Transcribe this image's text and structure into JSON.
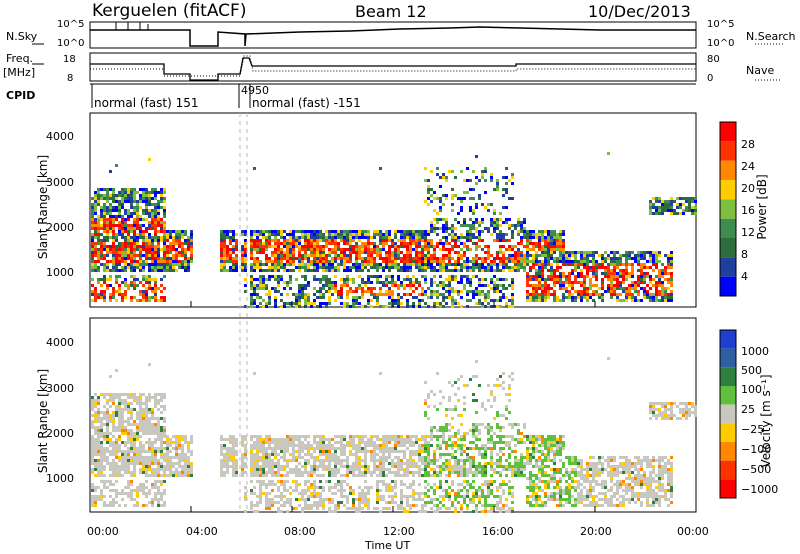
{
  "header": {
    "station": "Kerguelen (fitACF)",
    "beam": "Beam 12",
    "date": "10/Dec/2013"
  },
  "panels": {
    "nsky_label": "N.Sky",
    "nsearch_label": "N.Search",
    "freq_label_line1": "Freq.",
    "freq_label_line2": "[MHz]",
    "nave_label": "Nave",
    "cpid_label": "CPID",
    "nsky_ticks": [
      "10^5",
      "10^0"
    ],
    "nsearch_ticks": [
      "10^5",
      "10^0"
    ],
    "freq_ticks": [
      "18",
      "8"
    ],
    "nave_ticks": [
      "80",
      "0"
    ],
    "cpid_segments": [
      {
        "text": "normal (fast) 151"
      },
      {
        "text": "4950"
      },
      {
        "text": "normal (fast) -151"
      }
    ]
  },
  "colors": {
    "power_scale": [
      "#0000ff",
      "#1f3fa0",
      "#2e6b3d",
      "#3f8c4f",
      "#7fbf3f",
      "#ffcc00",
      "#ff8800",
      "#ff3300",
      "#ff0000"
    ],
    "velocity_scale": [
      "#1f3fd0",
      "#2f5fa0",
      "#2f7f3f",
      "#5fbf3f",
      "#c8c8c0",
      "#ffcc00",
      "#ff8800",
      "#ff3300",
      "#ff0000"
    ]
  },
  "chart_data": [
    {
      "type": "heatmap",
      "title": "Power",
      "ylabel": "Slant Range [km]",
      "xlabel": "Time UT",
      "y_ticks": [
        "4000",
        "3000",
        "2000",
        "1000"
      ],
      "x_ticks": [
        "00:00",
        "04:00",
        "08:00",
        "12:00",
        "16:00",
        "20:00",
        "00:00"
      ],
      "colorbar_label": "Power [dB]",
      "colorbar_ticks": [
        "28",
        "24",
        "20",
        "16",
        "12",
        "8",
        "4"
      ],
      "ylim": [
        180,
        4600
      ]
    },
    {
      "type": "heatmap",
      "title": "Velocity",
      "ylabel": "Slant Range [km]",
      "xlabel": "Time UT",
      "y_ticks": [
        "4000",
        "3000",
        "2000",
        "1000"
      ],
      "x_ticks": [
        "00:00",
        "04:00",
        "08:00",
        "12:00",
        "16:00",
        "20:00",
        "00:00"
      ],
      "colorbar_label": "Velocity [m s⁻¹]",
      "colorbar_ticks": [
        "1000",
        "500",
        "100",
        "25",
        "−25",
        "−100",
        "−500",
        "−1000"
      ],
      "ylim": [
        180,
        4600
      ]
    }
  ]
}
